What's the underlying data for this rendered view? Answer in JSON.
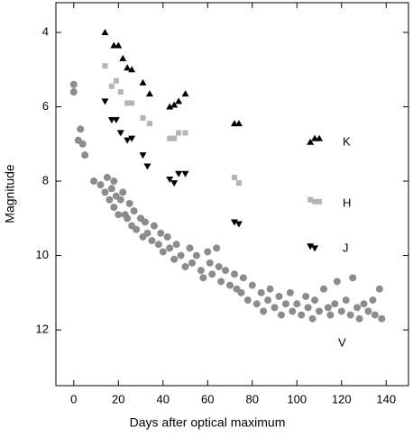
{
  "chart_data": {
    "type": "scatter",
    "x_label": "Days after optical maximum",
    "y_label": "Magnitude",
    "xlim": [
      -8,
      150
    ],
    "xticks": [
      0,
      20,
      40,
      60,
      80,
      100,
      120,
      140
    ],
    "ylim": [
      13.5,
      3.2
    ],
    "yticks": [
      4,
      6,
      8,
      10,
      12
    ],
    "grid": false,
    "series": [
      {
        "name": "K",
        "color": "#000000",
        "marker": "triangle-up",
        "x": [
          14,
          18,
          20,
          22,
          24,
          26,
          31,
          34,
          43,
          45,
          47,
          50,
          72,
          74,
          106,
          108,
          110
        ],
        "values": [
          4.0,
          4.35,
          4.35,
          4.7,
          4.95,
          5.0,
          5.35,
          5.65,
          6.0,
          5.95,
          5.85,
          5.65,
          6.45,
          6.45,
          6.95,
          6.85,
          6.85
        ]
      },
      {
        "name": "H",
        "color": "#b4b4b4",
        "marker": "square",
        "x": [
          14,
          17,
          19,
          21,
          24,
          26,
          31,
          34,
          43,
          45,
          47,
          50,
          72,
          74,
          106,
          108,
          110
        ],
        "values": [
          4.9,
          5.45,
          5.3,
          5.6,
          5.9,
          5.9,
          6.3,
          6.45,
          6.85,
          6.85,
          6.7,
          6.7,
          7.9,
          8.05,
          8.5,
          8.55,
          8.55
        ]
      },
      {
        "name": "J",
        "color": "#000000",
        "marker": "triangle-down",
        "x": [
          14,
          17,
          19,
          21,
          24,
          26,
          31,
          33,
          43,
          45,
          47,
          50,
          72,
          74,
          106,
          108
        ],
        "values": [
          5.85,
          6.35,
          6.35,
          6.7,
          6.9,
          6.85,
          7.3,
          7.6,
          7.95,
          8.05,
          7.8,
          7.8,
          9.1,
          9.15,
          9.75,
          9.8
        ]
      },
      {
        "name": "V",
        "color": "#8c8c8c",
        "marker": "circle",
        "x": [
          0,
          0,
          2,
          3,
          4,
          5,
          9,
          12,
          14,
          15,
          16,
          17,
          18,
          18,
          19,
          20,
          21,
          22,
          23,
          24,
          25,
          26,
          27,
          28,
          30,
          31,
          32,
          33,
          35,
          36,
          38,
          39,
          40,
          42,
          43,
          45,
          46,
          48,
          50,
          52,
          53,
          55,
          57,
          58,
          60,
          61,
          62,
          64,
          65,
          66,
          68,
          70,
          72,
          73,
          75,
          76,
          78,
          80,
          82,
          84,
          85,
          87,
          88,
          90,
          92,
          93,
          95,
          97,
          98,
          100,
          102,
          104,
          105,
          107,
          108,
          110,
          112,
          114,
          115,
          117,
          118,
          120,
          122,
          124,
          125,
          127,
          128,
          130,
          132,
          134,
          135,
          137,
          138
        ],
        "values": [
          5.4,
          5.6,
          6.9,
          6.6,
          7.0,
          7.3,
          8.0,
          8.1,
          8.3,
          7.9,
          8.5,
          8.2,
          8.7,
          8.0,
          8.4,
          8.9,
          8.5,
          8.3,
          8.9,
          9.0,
          8.6,
          9.2,
          8.8,
          9.3,
          9.0,
          9.5,
          9.1,
          9.4,
          9.6,
          9.2,
          9.7,
          9.4,
          9.9,
          9.5,
          9.8,
          10.1,
          9.7,
          10.0,
          10.3,
          9.8,
          10.2,
          10.0,
          10.4,
          10.6,
          9.9,
          10.2,
          10.5,
          9.8,
          10.3,
          10.7,
          10.4,
          10.8,
          10.5,
          10.9,
          11.0,
          10.6,
          11.2,
          10.8,
          11.3,
          11.0,
          11.5,
          11.2,
          10.9,
          11.4,
          11.1,
          11.6,
          11.3,
          11.0,
          11.5,
          11.3,
          11.6,
          11.1,
          11.4,
          11.7,
          11.2,
          11.5,
          10.9,
          11.4,
          11.6,
          11.3,
          10.7,
          11.5,
          11.2,
          11.6,
          10.6,
          11.4,
          11.7,
          11.3,
          11.5,
          11.2,
          11.6,
          10.9,
          11.7
        ]
      }
    ]
  }
}
